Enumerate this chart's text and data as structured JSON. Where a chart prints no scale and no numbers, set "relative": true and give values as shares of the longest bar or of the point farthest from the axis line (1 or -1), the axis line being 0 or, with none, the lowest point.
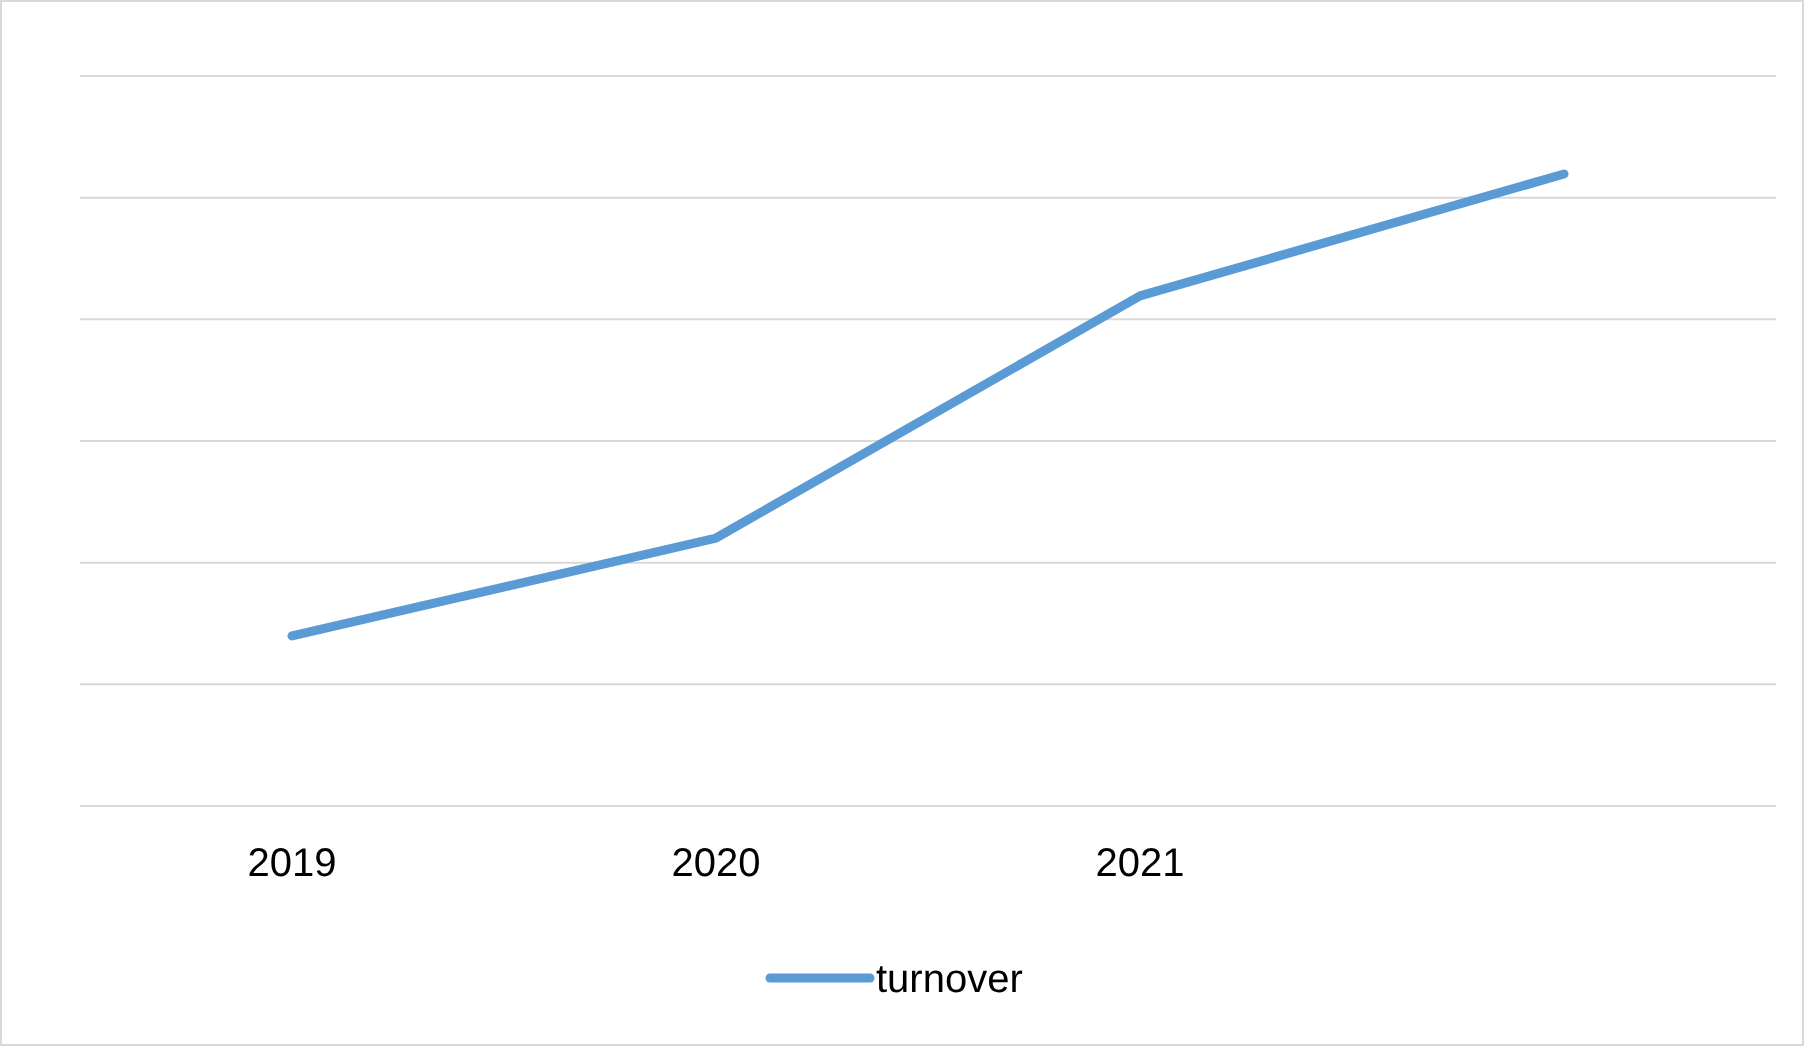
{
  "chart_data": {
    "type": "line",
    "relative": true,
    "categories": [
      "2019",
      "2020",
      "2021",
      null
    ],
    "series": [
      {
        "name": "turnover",
        "color": "#5b9bd5",
        "values": [
          0.269,
          0.424,
          0.807,
          1
        ]
      }
    ],
    "grid": true,
    "legend": "bottom",
    "marker": "none",
    "line_style": "solid"
  }
}
